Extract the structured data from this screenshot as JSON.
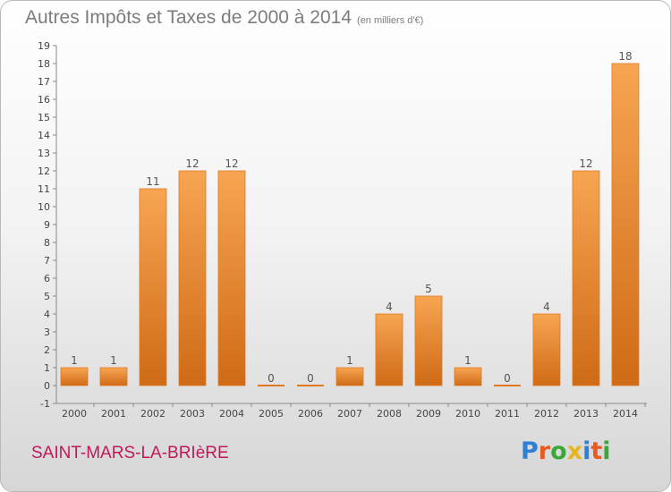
{
  "title": "Autres Impôts et Taxes de 2000 à 2014",
  "title_unit": "(en milliers d'€)",
  "commune": "SAINT-MARS-LA-BRIèRE",
  "logo": {
    "letters": [
      "P",
      "r",
      "o",
      "x",
      "i",
      "t",
      "i"
    ],
    "colors": [
      "#2e7fd6",
      "#e85a1f",
      "#38a839",
      "#e8b51f",
      "#2e7fd6",
      "#e85a1f",
      "#38a839"
    ]
  },
  "chart_data": {
    "type": "bar",
    "title": "Autres Impôts et Taxes de 2000 à 2014",
    "categories": [
      "2000",
      "2001",
      "2002",
      "2003",
      "2004",
      "2005",
      "2006",
      "2007",
      "2008",
      "2009",
      "2010",
      "2011",
      "2012",
      "2013",
      "2014"
    ],
    "values": [
      1,
      1,
      11,
      12,
      12,
      0,
      0,
      1,
      4,
      5,
      1,
      0,
      4,
      12,
      18
    ],
    "value_labels": [
      "1",
      "1",
      "11",
      "12",
      "12",
      "0",
      "0",
      "1",
      "4",
      "5",
      "1",
      "0",
      "4",
      "12",
      "18"
    ],
    "y_ticks": [
      "-1",
      "0",
      "1",
      "2",
      "3",
      "4",
      "5",
      "6",
      "7",
      "8",
      "9",
      "10",
      "11",
      "12",
      "13",
      "14",
      "15",
      "16",
      "17",
      "18",
      "19"
    ],
    "ylim": [
      -1,
      19
    ],
    "xlabel": "",
    "ylabel": "",
    "grid": false,
    "bar_color": "#f08a2e"
  }
}
